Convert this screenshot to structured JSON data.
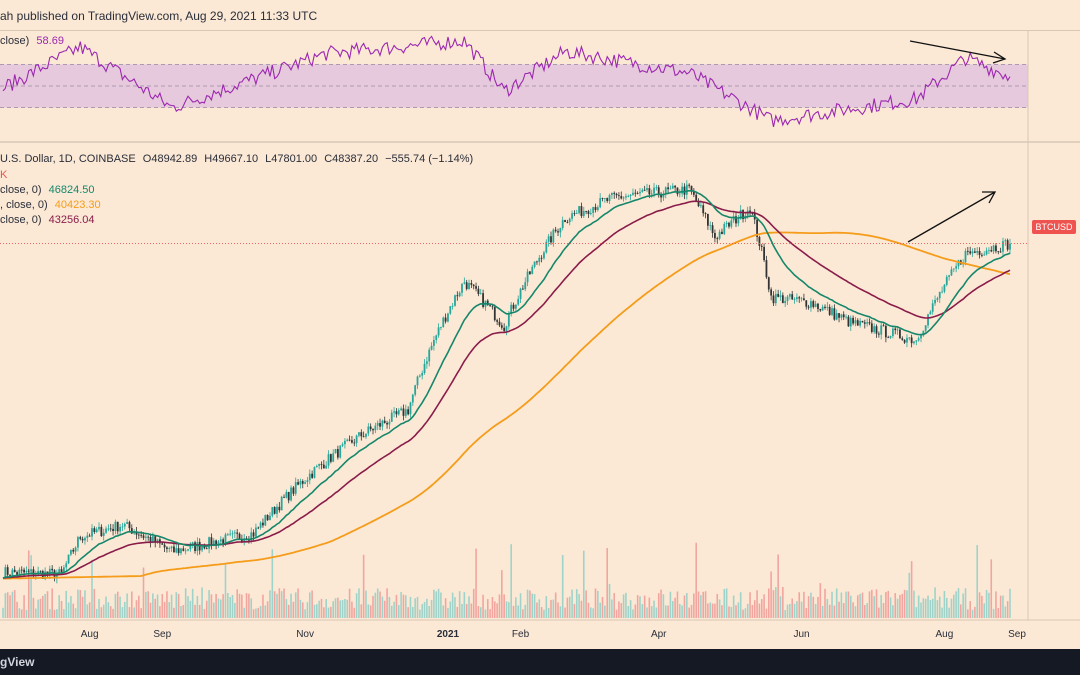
{
  "header": {
    "published_text": "ah published on TradingView.com, Aug 29, 2021 11:33 UTC"
  },
  "rsi_legend": {
    "label": "close)",
    "value": "58.69"
  },
  "price_legend": {
    "title_line": "U.S. Dollar, 1D, COINBASE",
    "open": "O48942.89",
    "high": "H49667.10",
    "low": "L47801.00",
    "close": "C48387.20",
    "change": "−555.74 (−1.14%)",
    "extra": "K"
  },
  "ma_legend": [
    {
      "label": "close, 0)",
      "value": "46824.50",
      "color": "#16876b"
    },
    {
      "label": ", close, 0)",
      "value": "40423.30",
      "color": "#f59c1a"
    },
    {
      "label": "close, 0)",
      "value": "43256.04",
      "color": "#8a1c4a"
    }
  ],
  "price_badge": "BTCUSD",
  "x_axis_labels": [
    "Aug",
    "Sep",
    "Nov",
    "2021",
    "Feb",
    "Apr",
    "Jun",
    "Aug",
    "Sep"
  ],
  "footer": {
    "brand": "gView"
  },
  "colors": {
    "background": "#fbe9d6",
    "rsi_line": "#9c27b0",
    "rsi_band": "#e6c9dc",
    "candle_up": "#26a69a",
    "candle_down": "#333333",
    "ma_fast": "#16876b",
    "ma_slow": "#8a1c4a",
    "ma_long": "#f59c1a",
    "last_price": "#ef5350"
  },
  "chart_data": {
    "type": "line",
    "series_note": "",
    "price_anchors": [
      {
        "date": "2020-06-25",
        "value": 9300
      },
      {
        "date": "2020-07-20",
        "value": 9200
      },
      {
        "date": "2020-07-28",
        "value": 11100
      },
      {
        "date": "2020-08-15",
        "value": 11800
      },
      {
        "date": "2020-09-05",
        "value": 10300
      },
      {
        "date": "2020-10-10",
        "value": 11300
      },
      {
        "date": "2020-11-05",
        "value": 15500
      },
      {
        "date": "2020-11-25",
        "value": 18500
      },
      {
        "date": "2020-12-15",
        "value": 21000
      },
      {
        "date": "2021-01-08",
        "value": 40000
      },
      {
        "date": "2021-01-25",
        "value": 32000
      },
      {
        "date": "2021-02-20",
        "value": 55000
      },
      {
        "date": "2021-03-13",
        "value": 61000
      },
      {
        "date": "2021-04-14",
        "value": 63500
      },
      {
        "date": "2021-04-25",
        "value": 50000
      },
      {
        "date": "2021-05-10",
        "value": 58000
      },
      {
        "date": "2021-05-19",
        "value": 37000
      },
      {
        "date": "2021-06-05",
        "value": 36000
      },
      {
        "date": "2021-06-22",
        "value": 32500
      },
      {
        "date": "2021-07-20",
        "value": 29800
      },
      {
        "date": "2021-08-10",
        "value": 46000
      },
      {
        "date": "2021-08-29",
        "value": 48387
      }
    ],
    "rsi_anchors": [
      {
        "date": "2020-06-25",
        "value": 48
      },
      {
        "date": "2020-07-28",
        "value": 86
      },
      {
        "date": "2020-09-05",
        "value": 30
      },
      {
        "date": "2020-11-10",
        "value": 80
      },
      {
        "date": "2021-01-08",
        "value": 92
      },
      {
        "date": "2021-01-25",
        "value": 45
      },
      {
        "date": "2021-02-20",
        "value": 82
      },
      {
        "date": "2021-04-14",
        "value": 62
      },
      {
        "date": "2021-05-19",
        "value": 18
      },
      {
        "date": "2021-07-20",
        "value": 38
      },
      {
        "date": "2021-08-10",
        "value": 76
      },
      {
        "date": "2021-08-29",
        "value": 58.69
      }
    ],
    "rsi_levels": [
      70,
      50,
      30
    ],
    "last_price": 48387.2
  }
}
